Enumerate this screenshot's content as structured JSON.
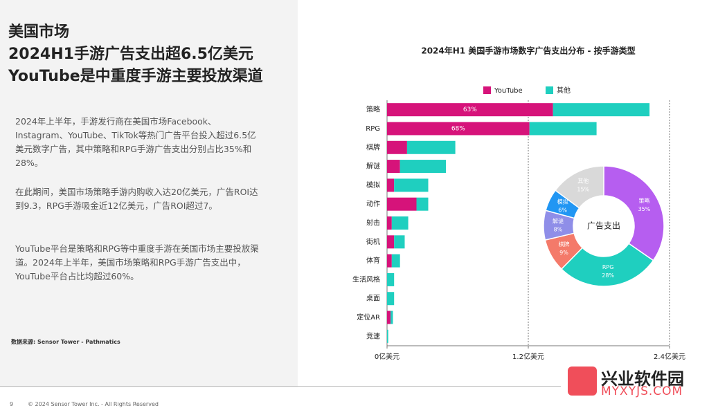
{
  "slide": {
    "title_lines": [
      "美国市场",
      "2024H1手游广告支出超6.5亿美元",
      "YouTube是中重度手游主要投放渠道"
    ],
    "paragraphs": [
      "2024年上半年，手游发行商在美国市场Facebook、Instagram、YouTube、TikTok等热门广告平台投入超过6.5亿美元数字广告，其中策略和RPG手游广告支出分别占比35%和28%。",
      "在此期间，美国市场策略手游内购收入达20亿美元，广告ROI达到9.3，RPG手游吸金近12亿美元，广告ROI超过7。",
      "YouTube平台是策略和RPG等中重度手游在美国市场主要投放渠道。2024年上半年，美国市场策略和RPG手游广告支出中，YouTube平台占比均超过60%。"
    ],
    "source": "数据来源: Sensor Tower  - Pathmatics",
    "page_number": "9",
    "copyright": "© 2024 Sensor Tower Inc. - All Rights Reserved",
    "watermark": [
      "兴业软件园",
      "MYXYJS.COM"
    ]
  },
  "chart_data": [
    {
      "type": "bar",
      "orientation": "horizontal",
      "stacked": true,
      "title": "2024年H1 美国手游市场数字广告支出分布 - 按手游类型",
      "categories": [
        "策略",
        "RPG",
        "棋牌",
        "解谜",
        "模拟",
        "动作",
        "射击",
        "街机",
        "体育",
        "生活风格",
        "桌面",
        "定位AR",
        "竞速"
      ],
      "series": [
        {
          "name": "YouTube",
          "color": "#d6137a",
          "values": [
            1.41,
            1.21,
            0.17,
            0.11,
            0.06,
            0.25,
            0.04,
            0.06,
            0.04,
            0.0,
            0.0,
            0.03,
            0.0
          ],
          "share_labels": [
            "63%",
            "68%"
          ]
        },
        {
          "name": "其他",
          "color": "#1fcfbf",
          "values": [
            0.82,
            0.57,
            0.41,
            0.39,
            0.29,
            0.1,
            0.14,
            0.09,
            0.07,
            0.06,
            0.06,
            0.02,
            0.01
          ]
        }
      ],
      "xlim": [
        0,
        2.4
      ],
      "xticks": [
        {
          "value": 0,
          "label": "0亿美元"
        },
        {
          "value": 1.2,
          "label": "1.2亿美元"
        },
        {
          "value": 2.4,
          "label": "2.4亿美元"
        }
      ],
      "grid": true
    },
    {
      "type": "pie",
      "donut": true,
      "center_label": "广告支出",
      "categories": [
        "策略",
        "RPG",
        "棋牌",
        "解谜",
        "模拟",
        "其他"
      ],
      "values": [
        35,
        28,
        9,
        8,
        6,
        15
      ],
      "value_labels": [
        "35%",
        "28%",
        "9%",
        "8%",
        "6%",
        "15%"
      ],
      "colors": [
        "#b65ef0",
        "#1fcfbf",
        "#f47a6a",
        "#8f8ee8",
        "#2196f3",
        "#d9d9d9"
      ]
    }
  ]
}
